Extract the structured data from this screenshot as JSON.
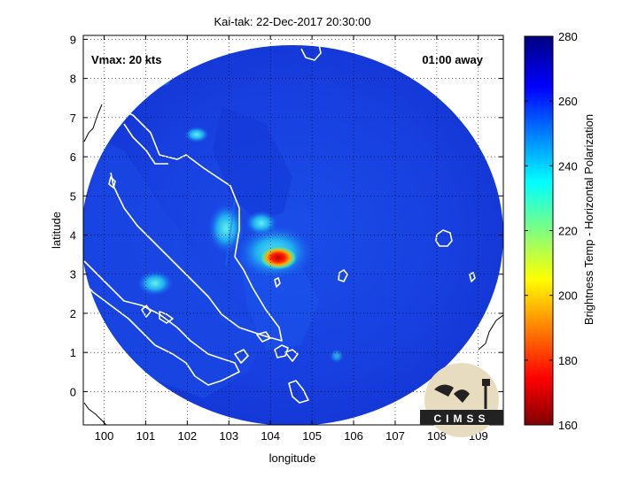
{
  "title": "Kai-tak: 22-Dec-2017 20:30:00",
  "vmax_label": "Vmax: 20 kts",
  "time_label": "01:00 away",
  "xlabel": "longitude",
  "ylabel": "latitude",
  "colorbar_label": "Brightness Temp - Horizontal Polarization",
  "logo_text": "CIMSS",
  "x_ticks": [
    "100",
    "101",
    "102",
    "103",
    "104",
    "105",
    "106",
    "107",
    "108",
    "109"
  ],
  "y_ticks": [
    "0",
    "1",
    "2",
    "3",
    "4",
    "5",
    "6",
    "7",
    "8",
    "9"
  ],
  "colorbar_ticks": [
    "280",
    "260",
    "240",
    "220",
    "200",
    "180",
    "160"
  ],
  "colors": {
    "deep_blue": "#1030d8",
    "mid_blue": "#1850f0",
    "cyan": "#20c8f0",
    "red_core": "#d01010",
    "coastline": "#ffffff"
  },
  "chart_data": {
    "type": "heatmap",
    "title": "Kai-tak: 22-Dec-2017 20:30:00",
    "xlabel": "longitude",
    "ylabel": "latitude",
    "xlim": [
      99.5,
      109.6
    ],
    "ylim": [
      -0.85,
      9.1
    ],
    "colorbar": {
      "label": "Brightness Temp - Horizontal Polarization",
      "range": [
        160,
        280
      ]
    },
    "grid": true,
    "features": [
      {
        "name": "cold core",
        "lon": 104.3,
        "lat": 3.4,
        "value": 180
      },
      {
        "name": "cool patch",
        "lon": 102.3,
        "lat": 6.6,
        "value": 230
      },
      {
        "name": "cool patch",
        "lon": 101.1,
        "lat": 2.8,
        "value": 235
      }
    ]
  }
}
